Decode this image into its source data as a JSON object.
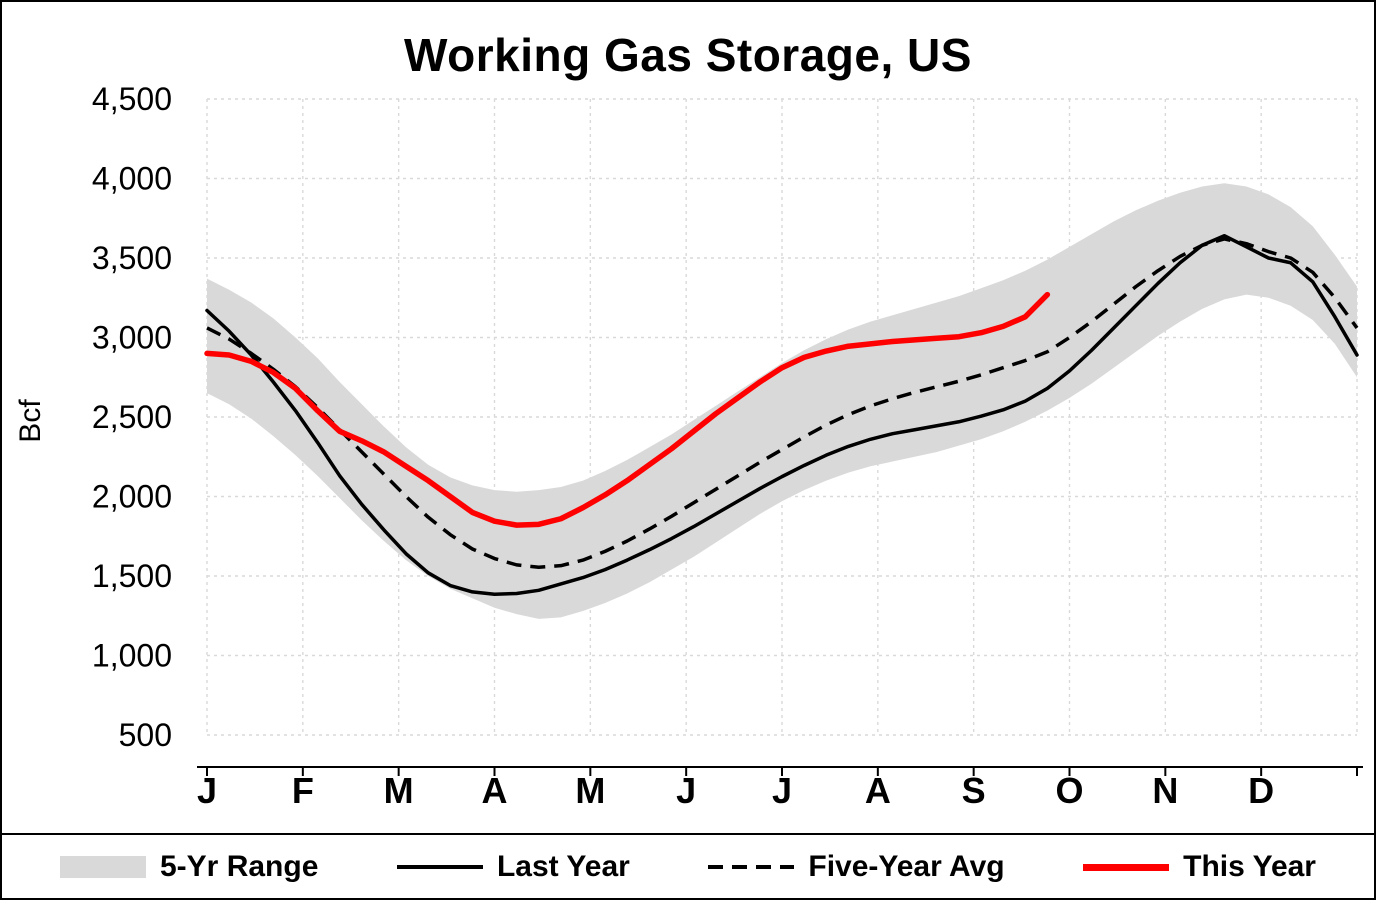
{
  "title": "Working Gas Storage, US",
  "y_axis": {
    "label": "Bcf",
    "tick_labels": [
      "4,500",
      "4,000",
      "3,500",
      "3,000",
      "2,500",
      "2,000",
      "1,500",
      "1,000",
      "500"
    ]
  },
  "x_axis": {
    "month_labels": [
      "J",
      "F",
      "M",
      "A",
      "M",
      "J",
      "J",
      "A",
      "S",
      "O",
      "N",
      "D"
    ]
  },
  "legend": {
    "items": [
      {
        "label": "5-Yr Range",
        "swatch": "band",
        "color": "#d9d9d9"
      },
      {
        "label": "Last Year",
        "swatch": "line-solid",
        "color": "#000000"
      },
      {
        "label": "Five-Year Avg",
        "swatch": "line-dashed",
        "color": "#000000"
      },
      {
        "label": "This Year",
        "swatch": "line-thick",
        "color": "#ff0000"
      }
    ]
  },
  "chart_data": {
    "type": "line",
    "title": "Working Gas Storage, US",
    "ylabel": "Bcf",
    "ylim": [
      500,
      4500
    ],
    "y_tick_step": 500,
    "x_unit": "weekly",
    "months": [
      "J",
      "F",
      "M",
      "A",
      "M",
      "J",
      "J",
      "A",
      "S",
      "O",
      "N",
      "D"
    ],
    "grid": true,
    "legend_position": "bottom",
    "band": {
      "name": "5-Yr Range",
      "color": "#d9d9d9",
      "upper": [
        3370,
        3300,
        3220,
        3120,
        3000,
        2870,
        2720,
        2580,
        2440,
        2310,
        2200,
        2120,
        2070,
        2040,
        2030,
        2040,
        2060,
        2100,
        2160,
        2230,
        2310,
        2390,
        2480,
        2570,
        2660,
        2750,
        2840,
        2920,
        2990,
        3050,
        3100,
        3140,
        3180,
        3220,
        3260,
        3310,
        3360,
        3420,
        3490,
        3570,
        3650,
        3730,
        3800,
        3860,
        3910,
        3950,
        3970,
        3950,
        3900,
        3820,
        3700,
        3520,
        3320
      ],
      "lower": [
        2650,
        2580,
        2490,
        2380,
        2260,
        2130,
        1990,
        1850,
        1720,
        1600,
        1500,
        1420,
        1360,
        1300,
        1260,
        1230,
        1240,
        1280,
        1330,
        1390,
        1460,
        1540,
        1620,
        1710,
        1800,
        1890,
        1970,
        2040,
        2100,
        2150,
        2190,
        2220,
        2250,
        2280,
        2320,
        2360,
        2410,
        2470,
        2540,
        2620,
        2710,
        2810,
        2910,
        3010,
        3100,
        3180,
        3240,
        3270,
        3250,
        3200,
        3110,
        2960,
        2750
      ]
    },
    "series": [
      {
        "name": "Last Year",
        "style": "solid",
        "color": "#000000",
        "width": 3.5,
        "values": [
          3170,
          3040,
          2890,
          2720,
          2540,
          2340,
          2130,
          1950,
          1790,
          1640,
          1520,
          1440,
          1400,
          1385,
          1390,
          1410,
          1450,
          1490,
          1540,
          1600,
          1665,
          1735,
          1810,
          1890,
          1970,
          2050,
          2125,
          2195,
          2260,
          2315,
          2360,
          2395,
          2420,
          2445,
          2470,
          2505,
          2545,
          2600,
          2680,
          2790,
          2920,
          3060,
          3200,
          3340,
          3470,
          3580,
          3640,
          3570,
          3500,
          3470,
          3350,
          3130,
          2890
        ]
      },
      {
        "name": "Five-Year Avg",
        "style": "dashed",
        "color": "#000000",
        "width": 3.5,
        "values": [
          3060,
          2990,
          2900,
          2800,
          2690,
          2560,
          2420,
          2280,
          2140,
          2000,
          1870,
          1760,
          1670,
          1610,
          1570,
          1555,
          1565,
          1600,
          1655,
          1720,
          1795,
          1875,
          1960,
          2045,
          2130,
          2215,
          2295,
          2375,
          2450,
          2515,
          2570,
          2615,
          2655,
          2690,
          2725,
          2765,
          2810,
          2855,
          2910,
          3000,
          3100,
          3210,
          3320,
          3420,
          3510,
          3580,
          3620,
          3590,
          3540,
          3500,
          3410,
          3250,
          3060
        ]
      },
      {
        "name": "This Year",
        "style": "solid",
        "color": "#ff0000",
        "width": 5.5,
        "values": [
          2900,
          2890,
          2850,
          2780,
          2680,
          2540,
          2410,
          2350,
          2280,
          2190,
          2100,
          2000,
          1900,
          1845,
          1820,
          1825,
          1860,
          1930,
          2010,
          2100,
          2200,
          2300,
          2410,
          2520,
          2620,
          2720,
          2810,
          2875,
          2915,
          2945,
          2960,
          2975,
          2985,
          2995,
          3005,
          3030,
          3070,
          3130,
          3270
        ]
      }
    ]
  }
}
